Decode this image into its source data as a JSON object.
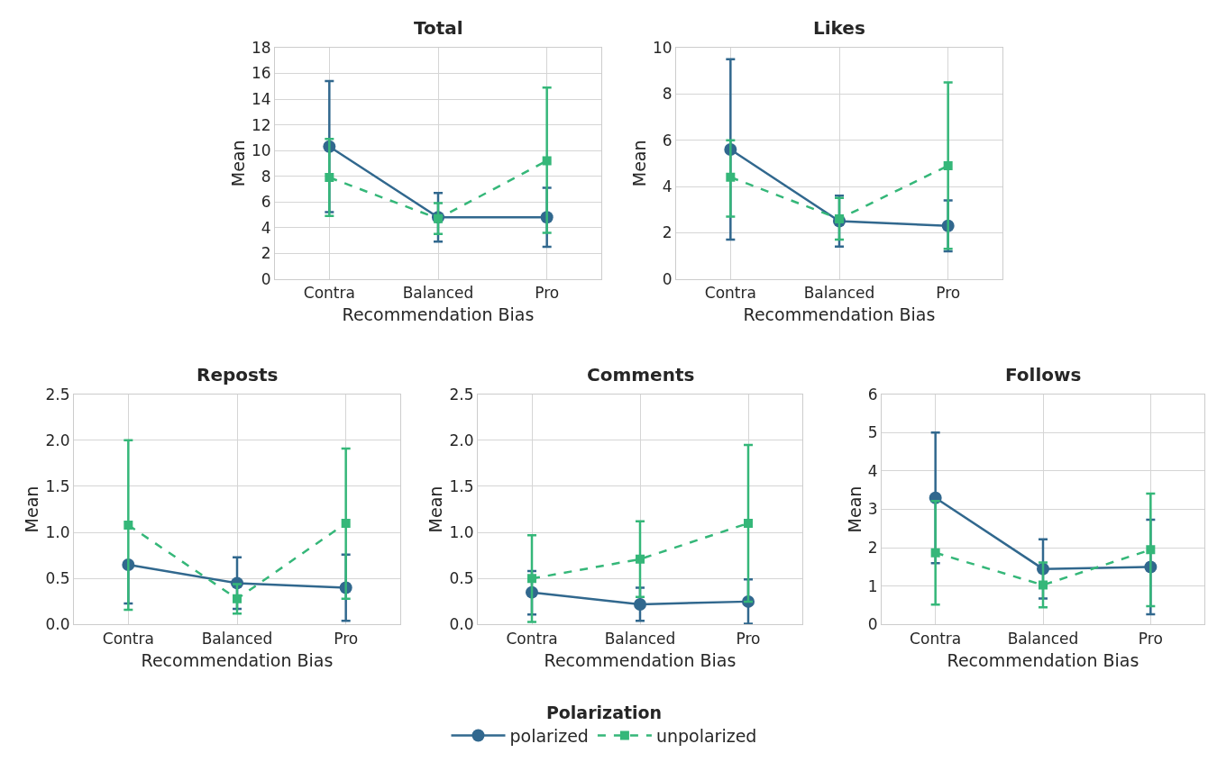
{
  "chart_data": [
    {
      "type": "line",
      "title": "Total",
      "xlabel": "Recommendation Bias",
      "ylabel": "Mean",
      "categories": [
        "Contra",
        "Balanced",
        "Pro"
      ],
      "ylim": [
        0,
        18
      ],
      "yticks": [
        0,
        2,
        4,
        6,
        8,
        10,
        12,
        14,
        16,
        18
      ],
      "grid": true,
      "legend": "bottom",
      "legend_title": "Polarization",
      "series": [
        {
          "name": "polarized",
          "color": "#31688e",
          "marker": "circle",
          "line_style": "solid",
          "values": [
            10.3,
            4.8,
            4.8
          ],
          "errors": [
            [
              5.2,
              15.4
            ],
            [
              2.9,
              6.7
            ],
            [
              2.5,
              7.1
            ]
          ]
        },
        {
          "name": "unpolarized",
          "color": "#35b779",
          "marker": "square",
          "line_style": "dashed",
          "values": [
            7.9,
            4.7,
            9.2
          ],
          "errors": [
            [
              4.9,
              10.9
            ],
            [
              3.5,
              5.9
            ],
            [
              3.6,
              14.9
            ]
          ]
        }
      ]
    },
    {
      "type": "line",
      "title": "Likes",
      "xlabel": "Recommendation Bias",
      "ylabel": "Mean",
      "categories": [
        "Contra",
        "Balanced",
        "Pro"
      ],
      "ylim": [
        0,
        10
      ],
      "yticks": [
        0,
        2,
        4,
        6,
        8,
        10
      ],
      "grid": true,
      "series": [
        {
          "name": "polarized",
          "color": "#31688e",
          "marker": "circle",
          "line_style": "solid",
          "values": [
            5.6,
            2.5,
            2.3
          ],
          "errors": [
            [
              1.7,
              9.5
            ],
            [
              1.4,
              3.6
            ],
            [
              1.2,
              3.4
            ]
          ]
        },
        {
          "name": "unpolarized",
          "color": "#35b779",
          "marker": "square",
          "line_style": "dashed",
          "values": [
            4.4,
            2.6,
            4.9
          ],
          "errors": [
            [
              2.7,
              6.0
            ],
            [
              1.7,
              3.5
            ],
            [
              1.3,
              8.5
            ]
          ]
        }
      ]
    },
    {
      "type": "line",
      "title": "Reposts",
      "xlabel": "Recommendation Bias",
      "ylabel": "Mean",
      "categories": [
        "Contra",
        "Balanced",
        "Pro"
      ],
      "ylim": [
        0,
        2.5
      ],
      "yticks": [
        {
          "value": 0,
          "label": "0.0"
        },
        {
          "value": 0.5,
          "label": "0.5"
        },
        {
          "value": 1,
          "label": "1.0"
        },
        {
          "value": 1.5,
          "label": "1.5"
        },
        {
          "value": 2,
          "label": "2.0"
        },
        {
          "value": 2.5,
          "label": "2.5"
        }
      ],
      "grid": true,
      "series": [
        {
          "name": "polarized",
          "color": "#31688e",
          "marker": "circle",
          "line_style": "solid",
          "values": [
            0.65,
            0.45,
            0.4
          ],
          "errors": [
            [
              0.23,
              0.65
            ],
            [
              0.17,
              0.73
            ],
            [
              0.04,
              0.76
            ]
          ]
        },
        {
          "name": "unpolarized",
          "color": "#35b779",
          "marker": "square",
          "line_style": "dashed",
          "values": [
            1.08,
            0.28,
            1.1
          ],
          "errors": [
            [
              0.16,
              2.0
            ],
            [
              0.12,
              0.44
            ],
            [
              0.28,
              1.91
            ]
          ]
        }
      ]
    },
    {
      "type": "line",
      "title": "Comments",
      "xlabel": "Recommendation Bias",
      "ylabel": "Mean",
      "categories": [
        "Contra",
        "Balanced",
        "Pro"
      ],
      "ylim": [
        0,
        2.5
      ],
      "yticks": [
        {
          "value": 0,
          "label": "0.0"
        },
        {
          "value": 0.5,
          "label": "0.5"
        },
        {
          "value": 1,
          "label": "1.0"
        },
        {
          "value": 1.5,
          "label": "1.5"
        },
        {
          "value": 2,
          "label": "2.0"
        },
        {
          "value": 2.5,
          "label": "2.5"
        }
      ],
      "grid": true,
      "series": [
        {
          "name": "polarized",
          "color": "#31688e",
          "marker": "circle",
          "line_style": "solid",
          "values": [
            0.35,
            0.22,
            0.25
          ],
          "errors": [
            [
              0.11,
              0.58
            ],
            [
              0.04,
              0.4
            ],
            [
              0.01,
              0.49
            ]
          ]
        },
        {
          "name": "unpolarized",
          "color": "#35b779",
          "marker": "square",
          "line_style": "dashed",
          "values": [
            0.5,
            0.71,
            1.1
          ],
          "errors": [
            [
              0.03,
              0.97
            ],
            [
              0.3,
              1.12
            ],
            [
              0.25,
              1.95
            ]
          ]
        }
      ]
    },
    {
      "type": "line",
      "title": "Follows",
      "xlabel": "Recommendation Bias",
      "ylabel": "Mean",
      "categories": [
        "Contra",
        "Balanced",
        "Pro"
      ],
      "ylim": [
        0,
        6
      ],
      "yticks": [
        0,
        1,
        2,
        3,
        4,
        5,
        6
      ],
      "grid": true,
      "series": [
        {
          "name": "polarized",
          "color": "#31688e",
          "marker": "circle",
          "line_style": "solid",
          "values": [
            3.3,
            1.45,
            1.5
          ],
          "errors": [
            [
              1.6,
              5.0
            ],
            [
              0.68,
              2.22
            ],
            [
              0.27,
              2.73
            ]
          ]
        },
        {
          "name": "unpolarized",
          "color": "#35b779",
          "marker": "square",
          "line_style": "dashed",
          "values": [
            1.87,
            1.03,
            1.95
          ],
          "errors": [
            [
              0.52,
              3.22
            ],
            [
              0.45,
              1.62
            ],
            [
              0.48,
              3.41
            ]
          ]
        }
      ]
    }
  ]
}
